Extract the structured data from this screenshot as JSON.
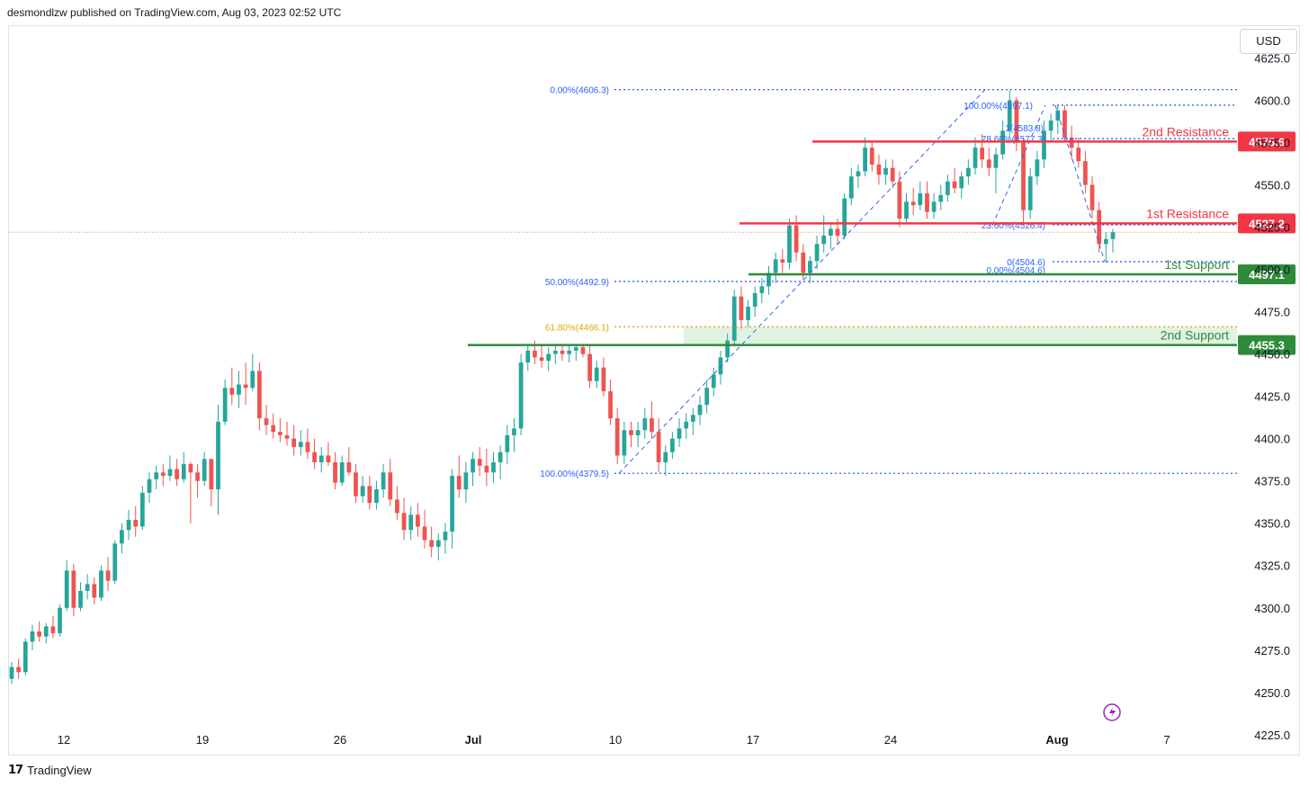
{
  "header": {
    "published_by": "desmondlzw published on TradingView.com, Aug 03, 2023 02:52 UTC"
  },
  "currency": "USD",
  "footer": {
    "brand": "TradingView",
    "logo": "tradingview-logo-icon"
  },
  "colors": {
    "up": "#26a69a",
    "down": "#ef5350",
    "resistance": "#f23645",
    "support": "#2e8b3a",
    "fib": "#2962ff",
    "fib_gold": "#e0a800",
    "zone": "#d8efd9"
  },
  "chart_data": {
    "type": "candlestick",
    "symbol_currency": "USD",
    "x_ticks": [
      "12",
      "19",
      "26",
      "Jul",
      "10",
      "17",
      "24",
      "Aug",
      "7"
    ],
    "y_ticks": [
      4225.0,
      4250.0,
      4275.0,
      4300.0,
      4325.0,
      4350.0,
      4375.0,
      4400.0,
      4425.0,
      4450.0,
      4475.0,
      4500.0,
      4525.0,
      4550.0,
      4575.0,
      4600.0,
      4625.0
    ],
    "ylim": [
      4218,
      4638
    ],
    "levels": [
      {
        "name": "2nd Resistance",
        "value": 4575.6,
        "kind": "resistance"
      },
      {
        "name": "1st Resistance",
        "value": 4527.2,
        "kind": "resistance"
      },
      {
        "name": "1st Support",
        "value": 4497.1,
        "kind": "support"
      },
      {
        "name": "2nd Support",
        "value": 4455.3,
        "kind": "support"
      }
    ],
    "fib_left": [
      {
        "label": "0.00%(4606.3)",
        "value": 4606.3
      },
      {
        "label": "50.00%(4492.9)",
        "value": 4492.9
      },
      {
        "label": "61.80%(4466.1)",
        "value": 4466.1
      },
      {
        "label": "100.00%(4379.5)",
        "value": 4379.5
      }
    ],
    "fib_right": [
      {
        "label": "100.00%(4597.1)",
        "value": 4597.1
      },
      {
        "label": "1(4583.8)",
        "value": 4583.8
      },
      {
        "label": "78.60%(4577.3)",
        "value": 4577.3
      },
      {
        "label": "23.60%(4526.4)",
        "value": 4526.4
      },
      {
        "label": "0(4504.6)",
        "value": 4504.6
      },
      {
        "label": "0.00%(4504.6)",
        "value": 4504.6
      }
    ],
    "candles": [
      [
        4258,
        4268,
        4255,
        4265
      ],
      [
        4265,
        4270,
        4258,
        4262
      ],
      [
        4262,
        4282,
        4260,
        4280
      ],
      [
        4280,
        4290,
        4275,
        4286
      ],
      [
        4286,
        4292,
        4280,
        4283
      ],
      [
        4283,
        4291,
        4279,
        4289
      ],
      [
        4289,
        4295,
        4282,
        4285
      ],
      [
        4285,
        4302,
        4283,
        4300
      ],
      [
        4300,
        4328,
        4298,
        4322
      ],
      [
        4322,
        4326,
        4295,
        4300
      ],
      [
        4300,
        4315,
        4298,
        4310
      ],
      [
        4310,
        4320,
        4305,
        4314
      ],
      [
        4314,
        4318,
        4302,
        4306
      ],
      [
        4306,
        4325,
        4304,
        4322
      ],
      [
        4322,
        4330,
        4310,
        4316
      ],
      [
        4316,
        4340,
        4314,
        4338
      ],
      [
        4338,
        4350,
        4332,
        4346
      ],
      [
        4346,
        4358,
        4340,
        4352
      ],
      [
        4352,
        4360,
        4342,
        4348
      ],
      [
        4348,
        4372,
        4346,
        4368
      ],
      [
        4368,
        4380,
        4362,
        4376
      ],
      [
        4376,
        4384,
        4370,
        4380
      ],
      [
        4380,
        4385,
        4372,
        4378
      ],
      [
        4378,
        4390,
        4375,
        4382
      ],
      [
        4382,
        4388,
        4372,
        4376
      ],
      [
        4376,
        4392,
        4374,
        4385
      ],
      [
        4385,
        4386,
        4350,
        4380
      ],
      [
        4380,
        4385,
        4365,
        4375
      ],
      [
        4375,
        4392,
        4372,
        4388
      ],
      [
        4388,
        4385,
        4360,
        4370
      ],
      [
        4370,
        4420,
        4355,
        4410
      ],
      [
        4410,
        4435,
        4408,
        4430
      ],
      [
        4430,
        4442,
        4420,
        4426
      ],
      [
        4426,
        4440,
        4418,
        4432
      ],
      [
        4432,
        4445,
        4420,
        4430
      ],
      [
        4430,
        4450,
        4428,
        4440
      ],
      [
        4440,
        4445,
        4405,
        4412
      ],
      [
        4412,
        4420,
        4402,
        4408
      ],
      [
        4408,
        4415,
        4400,
        4404
      ],
      [
        4404,
        4412,
        4398,
        4402
      ],
      [
        4402,
        4410,
        4396,
        4400
      ],
      [
        4400,
        4408,
        4390,
        4395
      ],
      [
        4395,
        4405,
        4390,
        4398
      ],
      [
        4398,
        4406,
        4388,
        4392
      ],
      [
        4392,
        4400,
        4382,
        4386
      ],
      [
        4386,
        4395,
        4380,
        4390
      ],
      [
        4390,
        4398,
        4384,
        4386
      ],
      [
        4386,
        4392,
        4370,
        4374
      ],
      [
        4374,
        4390,
        4372,
        4386
      ],
      [
        4386,
        4395,
        4378,
        4380
      ],
      [
        4380,
        4385,
        4362,
        4366
      ],
      [
        4366,
        4378,
        4362,
        4372
      ],
      [
        4372,
        4378,
        4358,
        4362
      ],
      [
        4362,
        4375,
        4358,
        4370
      ],
      [
        4370,
        4385,
        4365,
        4380
      ],
      [
        4380,
        4388,
        4360,
        4364
      ],
      [
        4364,
        4372,
        4352,
        4356
      ],
      [
        4356,
        4365,
        4340,
        4346
      ],
      [
        4346,
        4360,
        4340,
        4355
      ],
      [
        4355,
        4362,
        4342,
        4348
      ],
      [
        4348,
        4358,
        4335,
        4340
      ],
      [
        4340,
        4348,
        4330,
        4336
      ],
      [
        4336,
        4344,
        4328,
        4340
      ],
      [
        4340,
        4350,
        4332,
        4345
      ],
      [
        4345,
        4382,
        4335,
        4378
      ],
      [
        4378,
        4390,
        4365,
        4370
      ],
      [
        4370,
        4386,
        4362,
        4380
      ],
      [
        4380,
        4392,
        4372,
        4388
      ],
      [
        4388,
        4395,
        4378,
        4384
      ],
      [
        4384,
        4394,
        4372,
        4380
      ],
      [
        4380,
        4392,
        4374,
        4386
      ],
      [
        4386,
        4396,
        4376,
        4392
      ],
      [
        4392,
        4408,
        4385,
        4402
      ],
      [
        4402,
        4412,
        4392,
        4406
      ],
      [
        4406,
        4450,
        4402,
        4445
      ],
      [
        4445,
        4456,
        4440,
        4452
      ],
      [
        4452,
        4458,
        4444,
        4448
      ],
      [
        4448,
        4455,
        4442,
        4446
      ],
      [
        4446,
        4454,
        4440,
        4450
      ],
      [
        4450,
        4456,
        4444,
        4452
      ],
      [
        4452,
        4456,
        4446,
        4450
      ],
      [
        4450,
        4455,
        4445,
        4452
      ],
      [
        4452,
        4456,
        4446,
        4454
      ],
      [
        4454,
        4456,
        4448,
        4450
      ],
      [
        4450,
        4455,
        4430,
        4434
      ],
      [
        4434,
        4446,
        4430,
        4442
      ],
      [
        4442,
        4448,
        4425,
        4428
      ],
      [
        4428,
        4435,
        4408,
        4412
      ],
      [
        4412,
        4418,
        4385,
        4390
      ],
      [
        4390,
        4410,
        4385,
        4405
      ],
      [
        4405,
        4410,
        4395,
        4402
      ],
      [
        4402,
        4410,
        4395,
        4405
      ],
      [
        4405,
        4418,
        4400,
        4412
      ],
      [
        4412,
        4422,
        4400,
        4404
      ],
      [
        4404,
        4412,
        4380,
        4386
      ],
      [
        4386,
        4396,
        4378,
        4392
      ],
      [
        4392,
        4404,
        4388,
        4400
      ],
      [
        4400,
        4412,
        4395,
        4406
      ],
      [
        4406,
        4415,
        4400,
        4410
      ],
      [
        4410,
        4418,
        4402,
        4414
      ],
      [
        4414,
        4425,
        4408,
        4420
      ],
      [
        4420,
        4435,
        4415,
        4430
      ],
      [
        4430,
        4442,
        4425,
        4438
      ],
      [
        4438,
        4452,
        4432,
        4448
      ],
      [
        4448,
        4462,
        4445,
        4458
      ],
      [
        4458,
        4488,
        4455,
        4484
      ],
      [
        4484,
        4490,
        4465,
        4470
      ],
      [
        4470,
        4482,
        4466,
        4478
      ],
      [
        4478,
        4490,
        4472,
        4486
      ],
      [
        4486,
        4495,
        4480,
        4490
      ],
      [
        4490,
        4502,
        4485,
        4498
      ],
      [
        4498,
        4510,
        4492,
        4506
      ],
      [
        4506,
        4512,
        4498,
        4504
      ],
      [
        4504,
        4530,
        4500,
        4526
      ],
      [
        4526,
        4532,
        4505,
        4510
      ],
      [
        4510,
        4515,
        4494,
        4498
      ],
      [
        4498,
        4508,
        4492,
        4505
      ],
      [
        4505,
        4520,
        4500,
        4515
      ],
      [
        4515,
        4532,
        4510,
        4520
      ],
      [
        4520,
        4528,
        4512,
        4524
      ],
      [
        4524,
        4530,
        4515,
        4520
      ],
      [
        4520,
        4545,
        4518,
        4542
      ],
      [
        4542,
        4560,
        4538,
        4555
      ],
      [
        4555,
        4562,
        4548,
        4558
      ],
      [
        4558,
        4578,
        4555,
        4572
      ],
      [
        4572,
        4575,
        4558,
        4562
      ],
      [
        4562,
        4568,
        4550,
        4556
      ],
      [
        4556,
        4565,
        4550,
        4560
      ],
      [
        4560,
        4565,
        4548,
        4552
      ],
      [
        4552,
        4558,
        4525,
        4530
      ],
      [
        4530,
        4545,
        4528,
        4540
      ],
      [
        4540,
        4548,
        4532,
        4538
      ],
      [
        4538,
        4552,
        4535,
        4545
      ],
      [
        4545,
        4552,
        4530,
        4534
      ],
      [
        4534,
        4545,
        4530,
        4540
      ],
      [
        4540,
        4550,
        4535,
        4544
      ],
      [
        4544,
        4556,
        4540,
        4552
      ],
      [
        4552,
        4560,
        4545,
        4548
      ],
      [
        4548,
        4558,
        4542,
        4555
      ],
      [
        4555,
        4565,
        4550,
        4560
      ],
      [
        4560,
        4578,
        4556,
        4572
      ],
      [
        4572,
        4580,
        4560,
        4565
      ],
      [
        4565,
        4572,
        4555,
        4560
      ],
      [
        4560,
        4572,
        4545,
        4568
      ],
      [
        4568,
        4588,
        4565,
        4582
      ],
      [
        4582,
        4606,
        4578,
        4600
      ],
      [
        4600,
        4602,
        4570,
        4575
      ],
      [
        4575,
        4578,
        4528,
        4535
      ],
      [
        4535,
        4560,
        4530,
        4555
      ],
      [
        4555,
        4570,
        4550,
        4565
      ],
      [
        4565,
        4588,
        4560,
        4582
      ],
      [
        4582,
        4592,
        4575,
        4588
      ],
      [
        4588,
        4597,
        4580,
        4594
      ],
      [
        4594,
        4597,
        4575,
        4578
      ],
      [
        4578,
        4585,
        4565,
        4572
      ],
      [
        4572,
        4578,
        4560,
        4564
      ],
      [
        4564,
        4570,
        4545,
        4550
      ],
      [
        4550,
        4555,
        4530,
        4535
      ],
      [
        4535,
        4540,
        4510,
        4515
      ],
      [
        4515,
        4522,
        4504,
        4518
      ],
      [
        4518,
        4524,
        4510,
        4522
      ]
    ]
  }
}
